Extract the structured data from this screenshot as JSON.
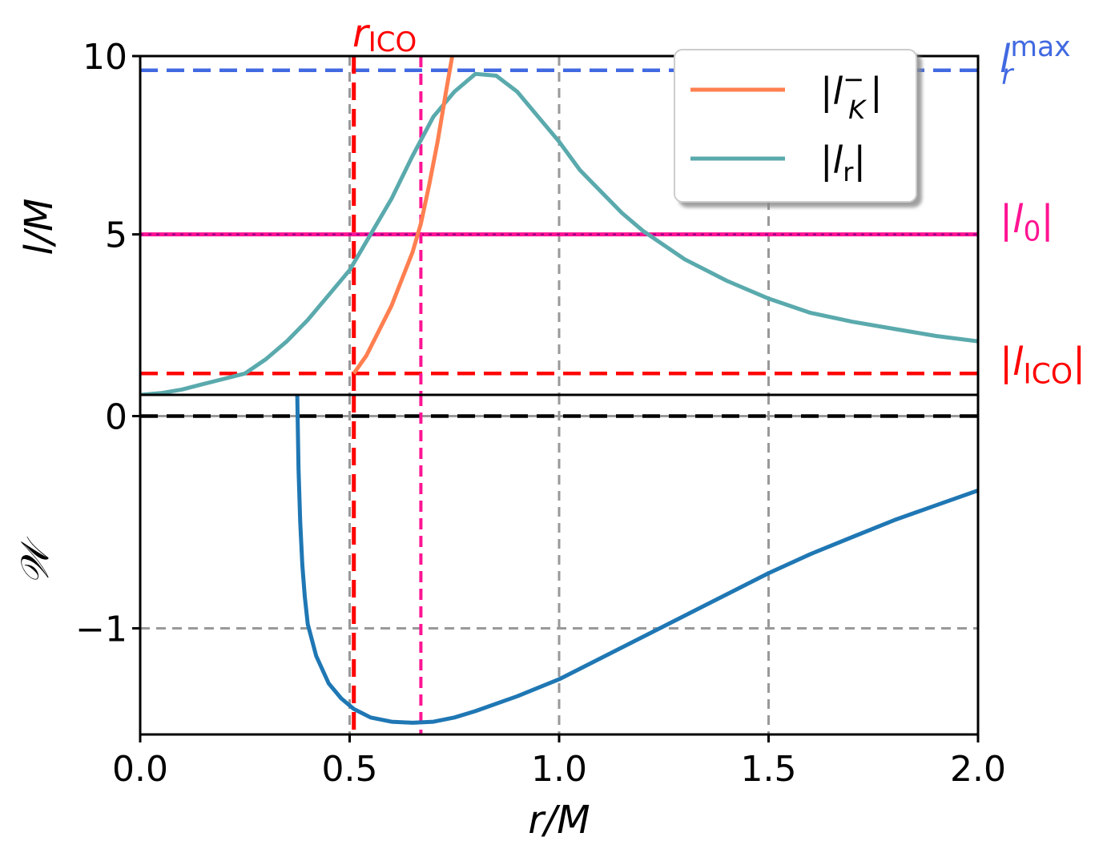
{
  "colors": {
    "orange": "#ff7f50",
    "teal": "#5aaaad",
    "blue": "#1f77b4",
    "red": "#ff0000",
    "magenta": "#ff1493",
    "royal": "#4169e1",
    "gray": "#999999",
    "black": "#000000",
    "purple": "#8b008b"
  },
  "chart_data": [
    {
      "type": "line",
      "panel": "top",
      "ylabel": "l/M",
      "xlim": [
        0.0,
        2.0
      ],
      "ylim": [
        0.5,
        10.0
      ],
      "yticks": [
        {
          "value": 5,
          "label": "5"
        },
        {
          "value": 10,
          "label": "10"
        }
      ],
      "xgrid": [
        0.5,
        1.0,
        1.5
      ],
      "legend": {
        "placement": "top-right",
        "entries": [
          {
            "label": "|l",
            "sub": "K",
            "sup": "−",
            "close": "|",
            "series": "lK"
          },
          {
            "label": "|l",
            "sub": "r",
            "sup": "",
            "close": "|",
            "series": "lr"
          }
        ]
      },
      "series": [
        {
          "name": "|l_K^-|",
          "x": [
            0.51,
            0.54,
            0.57,
            0.6,
            0.63,
            0.65,
            0.67,
            0.69,
            0.71,
            0.73,
            0.745
          ],
          "y": [
            1.1,
            1.6,
            2.3,
            3.0,
            3.9,
            4.5,
            5.3,
            6.4,
            7.6,
            9.0,
            10.0
          ]
        },
        {
          "name": "|l_r|",
          "x": [
            0.0,
            0.05,
            0.1,
            0.15,
            0.2,
            0.25,
            0.3,
            0.35,
            0.4,
            0.45,
            0.5,
            0.55,
            0.6,
            0.65,
            0.7,
            0.75,
            0.8,
            0.85,
            0.9,
            0.95,
            1.0,
            1.05,
            1.1,
            1.15,
            1.2,
            1.3,
            1.4,
            1.5,
            1.6,
            1.7,
            1.8,
            1.9,
            2.0
          ],
          "y": [
            0.5,
            0.55,
            0.65,
            0.8,
            0.95,
            1.1,
            1.5,
            2.0,
            2.6,
            3.3,
            4.0,
            5.0,
            6.0,
            7.2,
            8.3,
            9.0,
            9.5,
            9.45,
            9.0,
            8.3,
            7.6,
            6.8,
            6.2,
            5.6,
            5.1,
            4.3,
            3.7,
            3.2,
            2.8,
            2.55,
            2.35,
            2.15,
            2.0
          ]
        }
      ],
      "hlines": [
        {
          "y": 9.6,
          "label": "l",
          "sub": "r",
          "sup": "max",
          "style": "dashed",
          "color": "royal"
        },
        {
          "y": 5.0,
          "label": "|l",
          "sub": "0",
          "sup": "",
          "close": "|",
          "style": "solid",
          "color": "magenta"
        },
        {
          "y": 1.1,
          "label": "|l",
          "sub": "ICO",
          "sup": "",
          "close": "|",
          "style": "dashed",
          "color": "red"
        }
      ],
      "vlines": [
        {
          "x": 0.51,
          "label": "r",
          "sub": "ICO",
          "color": "red"
        },
        {
          "x": 0.67,
          "label": "",
          "color": "magenta"
        }
      ]
    },
    {
      "type": "line",
      "panel": "bottom",
      "xlabel": "r/M",
      "ylabel": "𝒲",
      "xlim": [
        0.0,
        2.0
      ],
      "ylim": [
        -1.5,
        0.1
      ],
      "xticks": [
        {
          "value": 0.0,
          "label": "0.0"
        },
        {
          "value": 0.5,
          "label": "0.5"
        },
        {
          "value": 1.0,
          "label": "1.0"
        },
        {
          "value": 1.5,
          "label": "1.5"
        },
        {
          "value": 2.0,
          "label": "2.0"
        }
      ],
      "yticks": [
        {
          "value": 0,
          "label": "0"
        },
        {
          "value": -1,
          "label": "−1"
        }
      ],
      "ygrid": [
        -1
      ],
      "xgrid": [
        0.5,
        1.0,
        1.5
      ],
      "series": [
        {
          "name": "W",
          "x": [
            0.375,
            0.378,
            0.382,
            0.387,
            0.393,
            0.4,
            0.42,
            0.45,
            0.48,
            0.51,
            0.55,
            0.6,
            0.65,
            0.7,
            0.75,
            0.8,
            0.9,
            1.0,
            1.1,
            1.2,
            1.3,
            1.4,
            1.5,
            1.6,
            1.7,
            1.8,
            1.9,
            2.0
          ],
          "y": [
            0.1,
            -0.25,
            -0.5,
            -0.7,
            -0.85,
            -0.98,
            -1.13,
            -1.26,
            -1.33,
            -1.38,
            -1.42,
            -1.44,
            -1.445,
            -1.44,
            -1.42,
            -1.39,
            -1.32,
            -1.24,
            -1.14,
            -1.04,
            -0.94,
            -0.84,
            -0.74,
            -0.65,
            -0.57,
            -0.49,
            -0.42,
            -0.35
          ]
        }
      ],
      "hlines": [
        {
          "y": 0,
          "style": "dashed",
          "color": "black"
        }
      ]
    }
  ]
}
